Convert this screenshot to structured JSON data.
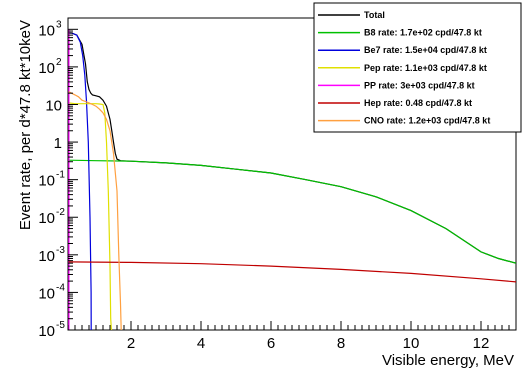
{
  "chart_data": {
    "type": "line",
    "xlabel": "Visible energy, MeV",
    "ylabel": "Event rate, per d*47.8 kt*10keV",
    "xlim": [
      0.2,
      13.0
    ],
    "ylim": [
      1e-05,
      2000
    ],
    "yscale": "log",
    "xticks": [
      2,
      4,
      6,
      8,
      10,
      12
    ],
    "yticks": [
      {
        "value": 1e-05,
        "base": "10",
        "exp": "-5"
      },
      {
        "value": 0.0001,
        "base": "10",
        "exp": "-4"
      },
      {
        "value": 0.001,
        "base": "10",
        "exp": "-3"
      },
      {
        "value": 0.01,
        "base": "10",
        "exp": "-2"
      },
      {
        "value": 0.1,
        "base": "10",
        "exp": "-1"
      },
      {
        "value": 1,
        "base": "1",
        "exp": ""
      },
      {
        "value": 10,
        "base": "10",
        "exp": ""
      },
      {
        "value": 100,
        "base": "10",
        "exp": "2"
      },
      {
        "value": 1000,
        "base": "10",
        "exp": "3"
      }
    ],
    "grid": false,
    "legend_position": "top-right",
    "series": [
      {
        "name": "Total",
        "color": "#000000",
        "x": [
          0.22,
          0.3,
          0.45,
          0.6,
          0.7,
          0.75,
          0.8,
          0.85,
          0.9,
          1.0,
          1.1,
          1.2,
          1.3,
          1.4,
          1.45,
          1.5,
          1.55,
          1.6,
          1.7,
          2.0,
          3.0,
          4.0,
          5.0,
          6.0,
          7.0,
          8.0,
          9.0,
          10.0,
          11.0,
          12.0,
          12.5,
          13.0
        ],
        "y": [
          800,
          800,
          700,
          400,
          120,
          40,
          25,
          20,
          18,
          17,
          16,
          13,
          9,
          4,
          2,
          1.0,
          0.5,
          0.35,
          0.32,
          0.31,
          0.28,
          0.24,
          0.19,
          0.15,
          0.1,
          0.065,
          0.035,
          0.015,
          0.005,
          0.0012,
          0.0008,
          0.0006
        ]
      },
      {
        "name": "B8 rate: 1.7e+02 cpd/47.8 kt",
        "color": "#00c000",
        "x": [
          0.22,
          1.0,
          2.0,
          3.0,
          4.0,
          5.0,
          6.0,
          7.0,
          8.0,
          9.0,
          10.0,
          11.0,
          12.0,
          12.5,
          13.0
        ],
        "y": [
          0.33,
          0.32,
          0.31,
          0.28,
          0.24,
          0.19,
          0.15,
          0.1,
          0.065,
          0.035,
          0.015,
          0.005,
          0.0012,
          0.0008,
          0.0006
        ]
      },
      {
        "name": "Be7 rate: 1.5e+04 cpd/47.8 kt",
        "color": "#0000dd",
        "x": [
          0.22,
          0.3,
          0.45,
          0.55,
          0.62,
          0.68,
          0.73,
          0.78,
          0.83,
          0.86,
          0.862
        ],
        "y": [
          800,
          800,
          700,
          450,
          200,
          60,
          12,
          1,
          0.01,
          0.0001,
          1e-05
        ]
      },
      {
        "name": "Pep rate: 1.1e+03 cpd/47.8 kt",
        "color": "#e0e000",
        "x": [
          0.22,
          0.4,
          0.6,
          0.8,
          1.0,
          1.1,
          1.2,
          1.25,
          1.3,
          1.35,
          1.4,
          1.42,
          1.44
        ],
        "y": [
          11,
          10.5,
          10.5,
          10.5,
          10.5,
          10.3,
          10,
          6,
          1,
          0.05,
          0.0005,
          2e-05,
          1e-05
        ]
      },
      {
        "name": "PP rate: 3e+03 cpd/47.8 kt",
        "color": "#ff00ff",
        "x": [
          0.225,
          0.227
        ],
        "y": [
          1000,
          1e-05
        ]
      },
      {
        "name": "Hep rate: 0.48 cpd/47.8 kt",
        "color": "#c00000",
        "x": [
          0.22,
          1.0,
          2.0,
          4.0,
          6.0,
          8.0,
          10.0,
          12.0,
          13.0
        ],
        "y": [
          0.00065,
          0.00064,
          0.00063,
          0.00058,
          0.0005,
          0.00041,
          0.00032,
          0.00023,
          0.00019
        ]
      },
      {
        "name": "CNO rate: 1.2e+03 cpd/47.8 kt",
        "color": "#ffa040",
        "x": [
          0.22,
          0.3,
          0.4,
          0.5,
          0.6,
          0.7,
          0.8,
          0.9,
          1.0,
          1.1,
          1.2,
          1.3,
          1.4,
          1.5,
          1.6,
          1.65,
          1.7,
          1.72
        ],
        "y": [
          22,
          20,
          18,
          16,
          13,
          12,
          11,
          10,
          9,
          7.5,
          6,
          4,
          2,
          0.5,
          0.05,
          0.001,
          5e-05,
          1e-05
        ]
      }
    ]
  }
}
